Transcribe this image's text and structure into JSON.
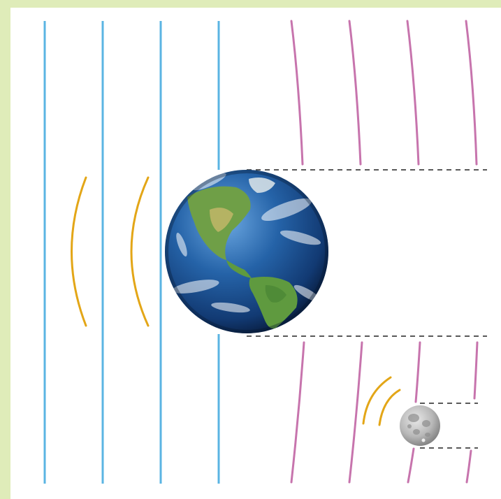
{
  "diagram": {
    "colors": {
      "border": "#dfecb9",
      "background": "#ffffff",
      "incoming_wavefronts": "#5ab4e3",
      "outgoing_wavefronts": "#c774ad",
      "scattered_arcs": "#e3a617",
      "shadow_guides": "#222222",
      "earth_ocean": "#1d4f97",
      "earth_land": "#5f9a3f",
      "moon": "#b4b4b4"
    },
    "icons": {
      "earth": "earth-globe-icon",
      "moon": "moon-icon"
    },
    "counts": {
      "incoming_wavefronts": 4,
      "outgoing_wavefronts": 4,
      "scattered_arcs_left": 2,
      "scattered_arcs_moon": 2
    }
  }
}
